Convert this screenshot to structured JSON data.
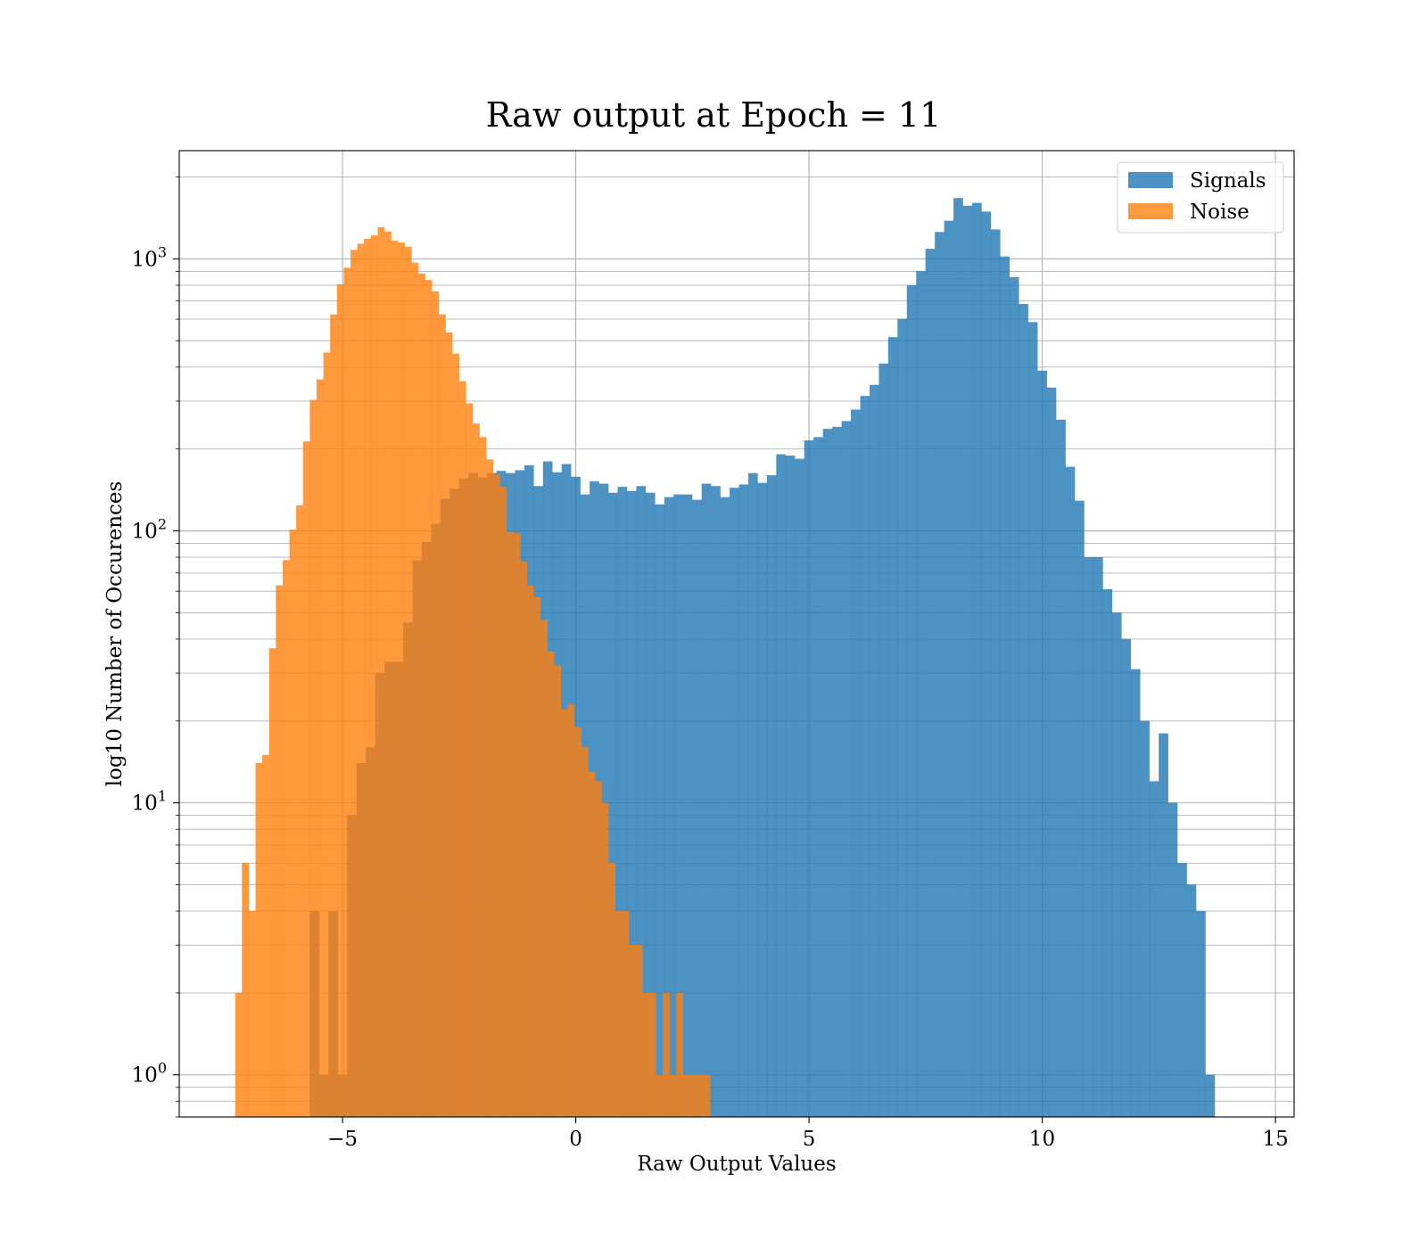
{
  "chart_data": {
    "type": "histogram",
    "title": "Raw output at Epoch = 11",
    "xlabel": "Raw Output Values",
    "ylabel": "log10 Number of Occurences",
    "xlim": [
      -8.5,
      15.4
    ],
    "ylim": [
      0.7,
      2500
    ],
    "yscale": "log",
    "grid": true,
    "legend_position": "top-right",
    "x_ticks": [
      {
        "value": -5,
        "label": "−5"
      },
      {
        "value": 0,
        "label": "0"
      },
      {
        "value": 5,
        "label": "5"
      },
      {
        "value": 10,
        "label": "10"
      },
      {
        "value": 15,
        "label": "15"
      }
    ],
    "y_ticks": [
      {
        "value": 1,
        "base": "10",
        "exp": "0"
      },
      {
        "value": 10,
        "base": "10",
        "exp": "1"
      },
      {
        "value": 100,
        "base": "10",
        "exp": "2"
      },
      {
        "value": 1000,
        "base": "10",
        "exp": "3"
      }
    ],
    "series": [
      {
        "name": "Signals",
        "color": "#1f77b4",
        "opacity": 0.8,
        "bin_start": -5.7,
        "bin_width": 0.2,
        "counts": [
          4,
          1,
          4,
          1,
          9,
          14,
          16,
          30,
          33,
          33,
          46,
          78,
          91,
          106,
          131,
          143,
          156,
          163,
          157,
          163,
          166,
          163,
          167,
          174,
          146,
          180,
          164,
          176,
          158,
          136,
          152,
          149,
          138,
          145,
          140,
          146,
          138,
          125,
          133,
          136,
          136,
          130,
          149,
          146,
          133,
          144,
          148,
          163,
          150,
          160,
          191,
          189,
          184,
          215,
          221,
          237,
          241,
          253,
          279,
          313,
          344,
          412,
          515,
          602,
          799,
          900,
          1088,
          1254,
          1380,
          1671,
          1567,
          1606,
          1491,
          1282,
          1020,
          856,
          682,
          585,
          388,
          336,
          256,
          172,
          129,
          80,
          80,
          61,
          50,
          40,
          31,
          20,
          12,
          18,
          10,
          6,
          5,
          4,
          1
        ]
      },
      {
        "name": "Noise",
        "color": "#ff7f0e",
        "opacity": 0.8,
        "bin_start": -7.3,
        "bin_width": 0.1455,
        "counts": [
          2,
          6,
          4,
          14,
          15,
          37,
          63,
          78,
          101,
          124,
          213,
          303,
          360,
          452,
          624,
          806,
          927,
          1078,
          1136,
          1184,
          1219,
          1307,
          1259,
          1165,
          1146,
          1108,
          968,
          883,
          836,
          759,
          625,
          536,
          448,
          355,
          294,
          248,
          221,
          183,
          161,
          145,
          99,
          98,
          77,
          63,
          57,
          47,
          36,
          32,
          22,
          23,
          19,
          16,
          13,
          12,
          10,
          6,
          4,
          4,
          3,
          3,
          2,
          2,
          1,
          2,
          1,
          2,
          1,
          1,
          1,
          1
        ]
      }
    ]
  }
}
